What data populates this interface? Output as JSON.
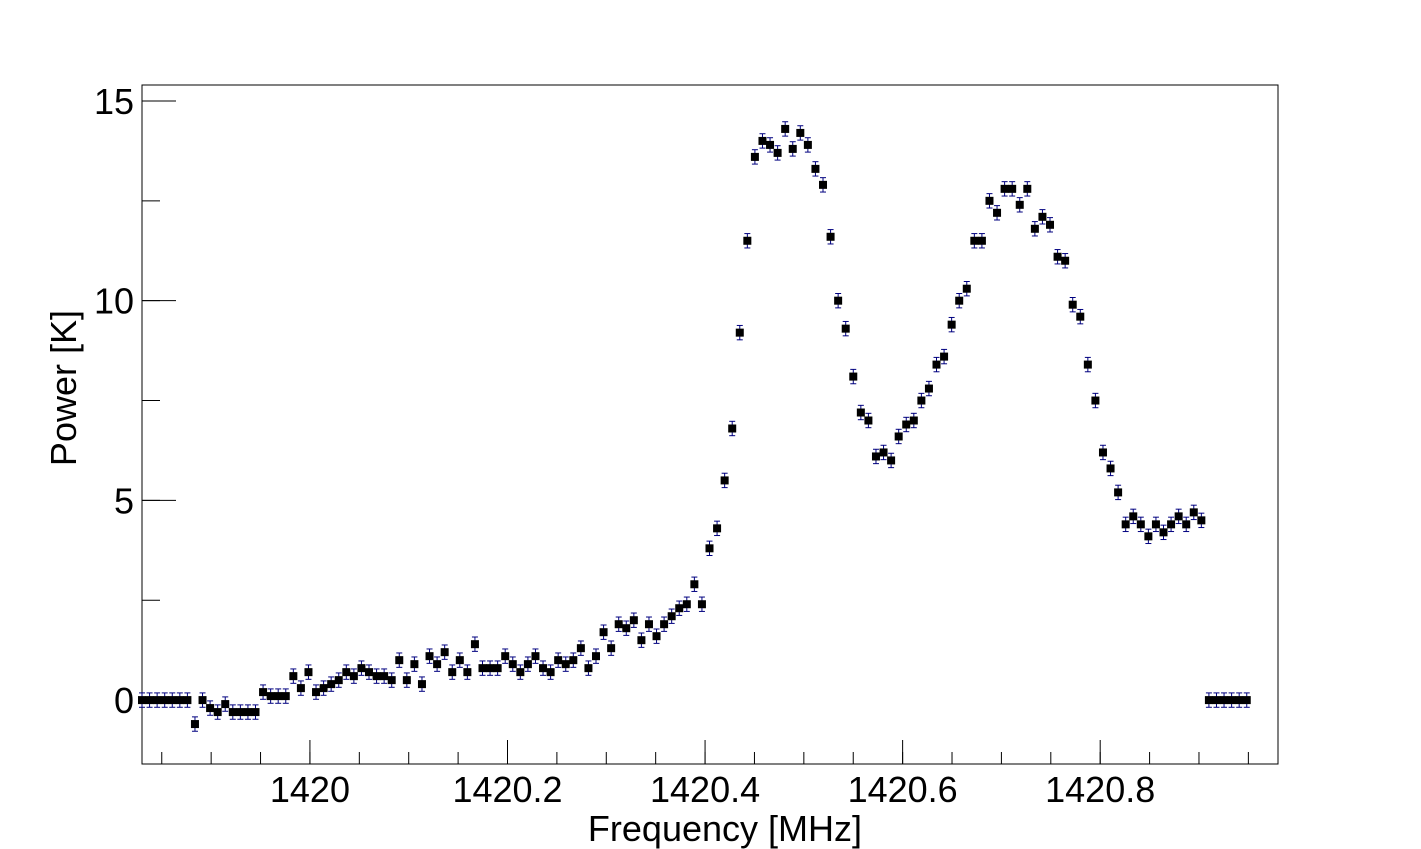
{
  "chart_data": {
    "type": "scatter",
    "xlabel": "Frequency [MHz]",
    "ylabel": "Power [K]",
    "xlim": [
      1419.83,
      1420.98
    ],
    "ylim": [
      -1.6,
      15.4
    ],
    "x_major_ticks": [
      1420,
      1420.2,
      1420.4,
      1420.6,
      1420.8
    ],
    "x_tick_labels": [
      "1420",
      "1420.2",
      "1420.4",
      "1420.6",
      "1420.8"
    ],
    "x_minor_step": 0.05,
    "y_major_ticks": [
      0,
      5,
      10,
      15
    ],
    "y_tick_labels": [
      "0",
      "5",
      "10",
      "15"
    ],
    "y_minor_step": 2.5,
    "grid": false,
    "marker": "filled-square",
    "marker_color": "#000000",
    "error_bar_color": "#00007f",
    "error_bar_halfwidth": 0.18,
    "x_start": 1419.83,
    "x_step": 0.00766,
    "y": [
      0,
      0,
      0,
      0,
      0,
      0,
      0,
      -0.6,
      0,
      -0.2,
      -0.3,
      -0.1,
      -0.3,
      -0.3,
      -0.3,
      -0.3,
      0.2,
      0.1,
      0.1,
      0.1,
      0.6,
      0.3,
      0.7,
      0.2,
      0.3,
      0.4,
      0.5,
      0.7,
      0.6,
      0.8,
      0.7,
      0.6,
      0.6,
      0.5,
      1.0,
      0.5,
      0.9,
      0.4,
      1.1,
      0.9,
      1.2,
      0.7,
      1.0,
      0.7,
      1.4,
      0.8,
      0.8,
      0.8,
      1.1,
      0.9,
      0.7,
      0.9,
      1.1,
      0.8,
      0.7,
      1.0,
      0.9,
      1.0,
      1.3,
      0.8,
      1.1,
      1.7,
      1.3,
      1.9,
      1.8,
      2.0,
      1.5,
      1.9,
      1.6,
      1.9,
      2.1,
      2.3,
      2.4,
      2.9,
      2.4,
      3.8,
      4.3,
      5.5,
      6.8,
      9.2,
      11.5,
      13.6,
      14.0,
      13.9,
      13.7,
      14.3,
      13.8,
      14.2,
      13.9,
      13.3,
      12.9,
      11.6,
      10.0,
      9.3,
      8.1,
      7.2,
      7.0,
      6.1,
      6.2,
      6.0,
      6.6,
      6.9,
      7.0,
      7.5,
      7.8,
      8.4,
      8.6,
      9.4,
      10.0,
      10.3,
      11.5,
      11.5,
      12.5,
      12.2,
      12.8,
      12.8,
      12.4,
      12.8,
      11.8,
      12.1,
      11.9,
      11.1,
      11.0,
      9.9,
      9.6,
      8.4,
      7.5,
      6.2,
      5.8,
      5.2,
      4.4,
      4.6,
      4.4,
      4.1,
      4.4,
      4.2,
      4.4,
      4.6,
      4.4,
      4.7,
      4.5,
      0,
      0,
      0,
      0,
      0,
      0
    ]
  }
}
